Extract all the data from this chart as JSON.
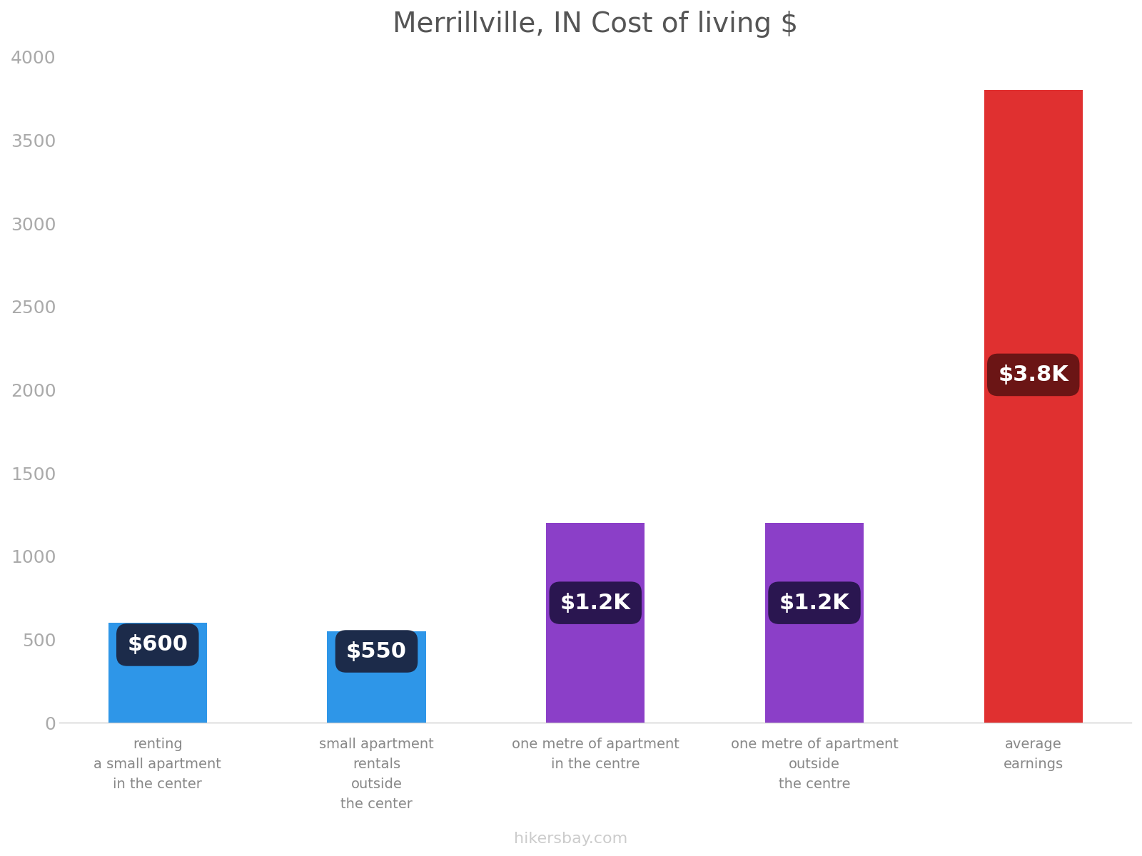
{
  "title": "Merrillville, IN Cost of living $",
  "categories": [
    "renting\na small apartment\nin the center",
    "small apartment\nrentals\noutside\nthe center",
    "one metre of apartment\nin the centre",
    "one metre of apartment\noutside\nthe centre",
    "average\nearnings"
  ],
  "values": [
    600,
    550,
    1200,
    1200,
    3800
  ],
  "bar_colors": [
    "#2E96E8",
    "#2E96E8",
    "#8B3FC8",
    "#8B3FC8",
    "#E03030"
  ],
  "label_texts": [
    "$600",
    "$550",
    "$1.2K",
    "$1.2K",
    "$3.8K"
  ],
  "label_bg_colors": [
    "#1C2B4A",
    "#1C2B4A",
    "#2A1650",
    "#2A1650",
    "#6B1515"
  ],
  "ylim": [
    0,
    4000
  ],
  "yticks": [
    0,
    500,
    1000,
    1500,
    2000,
    2500,
    3000,
    3500,
    4000
  ],
  "watermark": "hikersbay.com",
  "background_color": "#FFFFFF",
  "title_fontsize": 28,
  "tick_fontsize": 18,
  "xlabel_fontsize": 14,
  "watermark_fontsize": 16,
  "label_fontsize": 22
}
